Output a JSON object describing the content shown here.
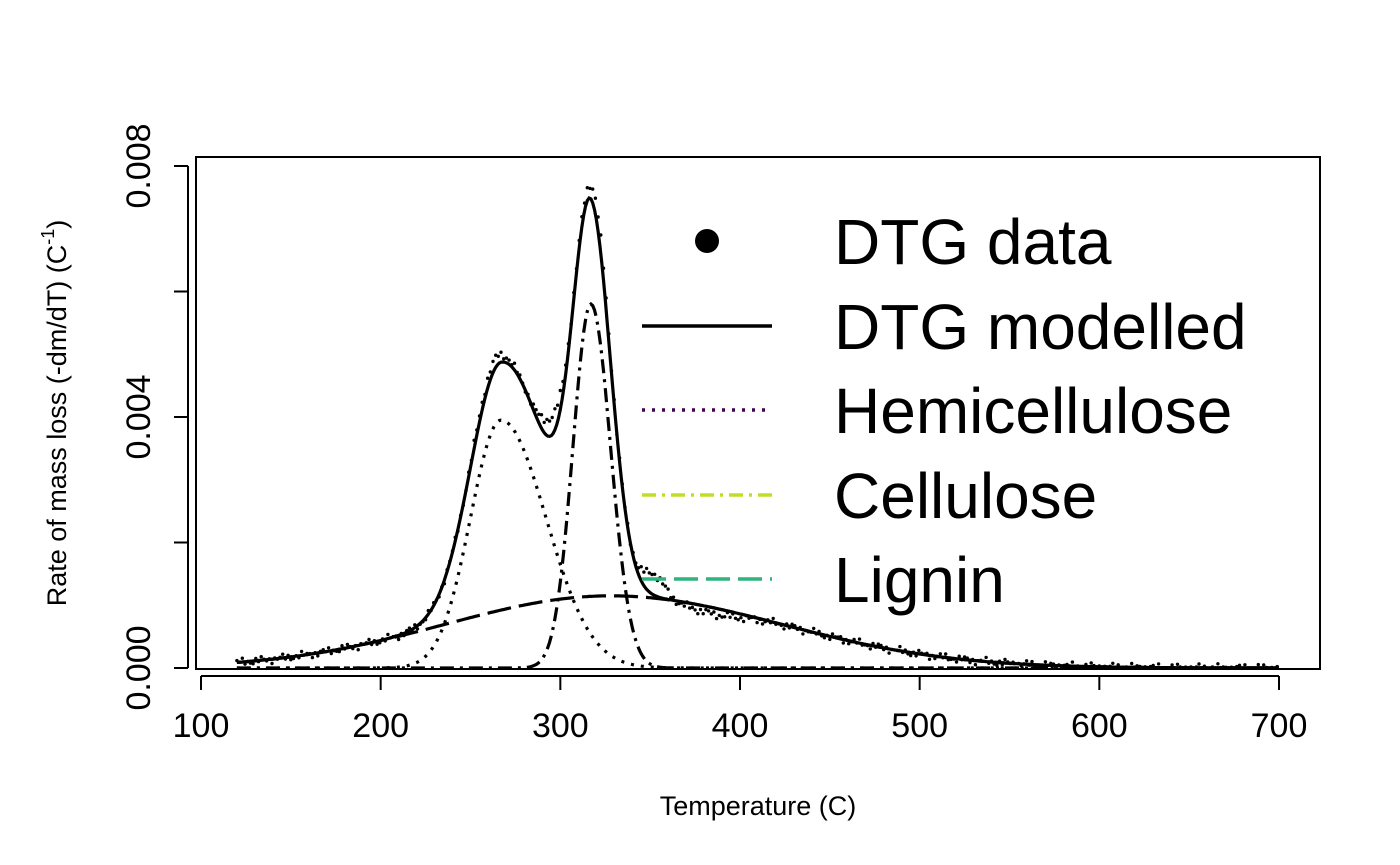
{
  "chart_data": {
    "type": "line",
    "xlabel": "Temperature (C)",
    "ylabel": "Rate of mass loss (-dm/dT) (C",
    "ylabel_sup": "-1",
    "ylabel_close": ")",
    "xlim": [
      100,
      700
    ],
    "ylim": [
      0,
      0.008
    ],
    "x_ticks": [
      100,
      200,
      300,
      400,
      500,
      600,
      700
    ],
    "x_tick_labels": [
      "100",
      "200",
      "300",
      "400",
      "500",
      "600",
      "700"
    ],
    "y_ticks": [
      0,
      0.002,
      0.004,
      0.006,
      0.008
    ],
    "y_tick_labels": [
      "0.000",
      "",
      "0.004",
      "",
      "0.008"
    ],
    "legend_position": "top-right",
    "grid": false,
    "series": [
      {
        "name": "DTG data",
        "style": "points",
        "color": "#000000",
        "x_range": [
          120,
          700
        ]
      },
      {
        "name": "DTG modelled",
        "style": "solid",
        "color": "#000000",
        "x_range": [
          120,
          700
        ]
      },
      {
        "name": "Hemicellulose",
        "style": "dotted",
        "color": "#440154",
        "legend_color": "#440154",
        "plot_color": "#000000",
        "peak": {
          "x": 267,
          "y": 0.00395
        },
        "sigma_left": 17,
        "sigma_right": 25
      },
      {
        "name": "Cellulose",
        "style": "dashdot",
        "color": "#bddf26",
        "legend_color": "#bddf26",
        "plot_color": "#000000",
        "peak": {
          "x": 317,
          "y": 0.0058
        },
        "sigma_left": 10,
        "sigma_right": 11
      },
      {
        "name": "Lignin",
        "style": "longdash",
        "color": "#2fb47c",
        "legend_color": "#2fb47c",
        "plot_color": "#000000",
        "peak": {
          "x": 328,
          "y": 0.00115
        },
        "sigma_left": 92,
        "sigma_right": 95
      }
    ]
  }
}
